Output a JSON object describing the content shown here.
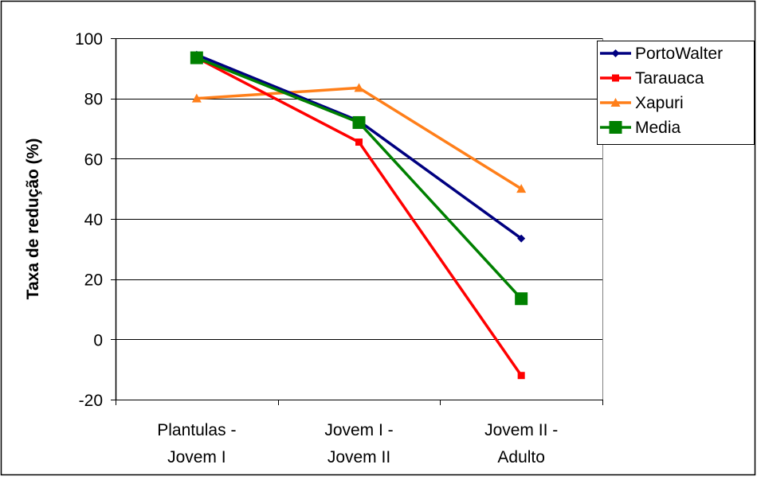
{
  "chart_data": {
    "type": "line",
    "title": "",
    "xlabel": "",
    "ylabel": "Taxa de redução (%)",
    "categories": [
      [
        "Plantulas -",
        "Jovem I"
      ],
      [
        "Jovem I -",
        "Jovem II"
      ],
      [
        "Jovem II -",
        "Adulto"
      ]
    ],
    "ylim": [
      -20,
      100
    ],
    "yticks": [
      "-20",
      "0",
      "20",
      "40",
      "60",
      "80",
      "100"
    ],
    "grid": "horizontal",
    "legend_position": "right",
    "series": [
      {
        "name": "PortoWalter",
        "color": "#000080",
        "marker": "diamond",
        "values": [
          94.5,
          72.5,
          33.5
        ]
      },
      {
        "name": "Tarauaca",
        "color": "#ff0000",
        "marker": "square-small",
        "values": [
          93.5,
          65.5,
          -12
        ]
      },
      {
        "name": "Xapuri",
        "color": "#ff7f1a",
        "marker": "triangle",
        "values": [
          80,
          83.5,
          50
        ]
      },
      {
        "name": "Media",
        "color": "#008000",
        "marker": "square-large",
        "values": [
          93.5,
          72,
          13.5
        ]
      }
    ]
  }
}
